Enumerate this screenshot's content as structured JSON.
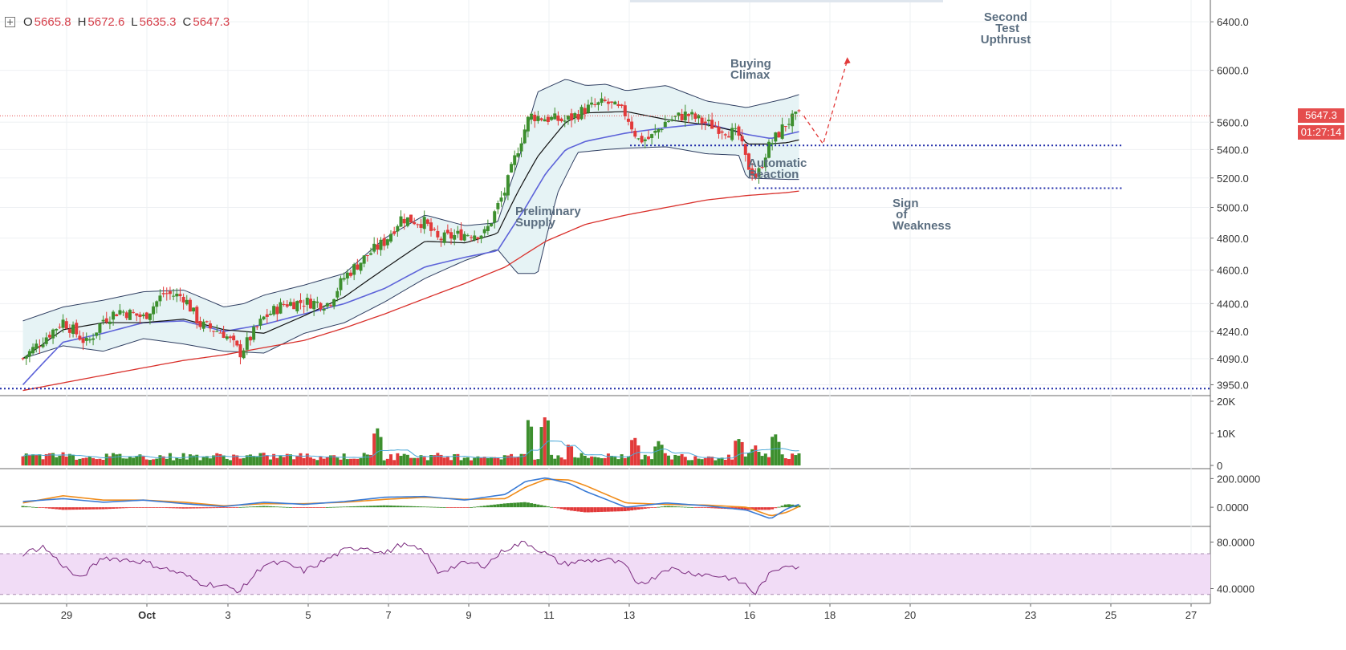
{
  "ohlc": {
    "o_label": "O",
    "o": "5665.8",
    "h_label": "H",
    "h": "5672.6",
    "l_label": "L",
    "l": "5635.3",
    "c_label": "C",
    "c": "5647.3"
  },
  "price_badge": {
    "value": "5647.3",
    "color": "#e54d4d"
  },
  "countdown_badge": {
    "value": "01:27:14",
    "color": "#e54d4d"
  },
  "annotations": [
    {
      "text": "Second\n   Test\nUpthrust"
    },
    {
      "text": "Buying\nClimax"
    },
    {
      "text": "Preliminary\nSupply"
    },
    {
      "text": "Automatic\nReaction"
    },
    {
      "text": "Sign\n  of\nWeakness"
    }
  ],
  "colors": {
    "up": "#3d8f2e",
    "down": "#e23a3a",
    "bb": "#2f3e61",
    "bb_fill": "#e6f3f5",
    "ma_black": "#111111",
    "ma_blue": "#5d63d9",
    "ma_red": "#d9302b",
    "support": "#1e2aa8",
    "macd_line": "#3a7bd5",
    "macd_signal": "#f08c1a",
    "rsi_line": "#7a2a7e",
    "rsi_band": "#f1dcf6",
    "vol_ma": "#4aa8d8",
    "annotation": "#5b6e80"
  },
  "chart_data": [
    {
      "type": "candlestick",
      "name": "price",
      "x_start": "2018-09-27",
      "x_end": "2018-10-19",
      "x_tick_labels": [
        "29",
        "Oct",
        "3",
        "5",
        "7",
        "9",
        "11",
        "13",
        "16",
        "18",
        "20",
        "23",
        "25",
        "27"
      ],
      "y_tick_labels": [
        "6400.0",
        "6000.0",
        "5600.0",
        "5400.0",
        "5200.0",
        "5000.0",
        "4800.0",
        "4600.0",
        "4400.0",
        "4240.0",
        "4090.0",
        "3950.0"
      ],
      "y_scale": "log",
      "ylim": [
        3910,
        6560
      ],
      "last_close": 5647.3,
      "close_path": [
        [
          0,
          4090
        ],
        [
          1,
          4300
        ],
        [
          1.6,
          4170
        ],
        [
          2,
          4310
        ],
        [
          2.4,
          4360
        ],
        [
          3,
          4320
        ],
        [
          3.5,
          4460
        ],
        [
          4,
          4440
        ],
        [
          4.4,
          4280
        ],
        [
          5,
          4230
        ],
        [
          5.4,
          4120
        ],
        [
          6,
          4320
        ],
        [
          6.5,
          4400
        ],
        [
          7,
          4410
        ],
        [
          7.6,
          4400
        ],
        [
          8,
          4560
        ],
        [
          8.6,
          4700
        ],
        [
          9,
          4780
        ],
        [
          9.4,
          4930
        ],
        [
          10,
          4900
        ],
        [
          10.3,
          4790
        ],
        [
          11,
          4830
        ],
        [
          11.5,
          4830
        ],
        [
          12,
          5120
        ],
        [
          12.3,
          5400
        ],
        [
          12.6,
          5650
        ],
        [
          13,
          5630
        ],
        [
          13.5,
          5610
        ],
        [
          14,
          5700
        ],
        [
          14.5,
          5750
        ],
        [
          15,
          5660
        ],
        [
          15.3,
          5470
        ],
        [
          15.6,
          5480
        ],
        [
          16,
          5610
        ],
        [
          16.5,
          5660
        ],
        [
          17,
          5590
        ],
        [
          17.5,
          5540
        ],
        [
          17.8,
          5500
        ],
        [
          18,
          5300
        ],
        [
          18.25,
          5200
        ],
        [
          18.5,
          5400
        ],
        [
          19,
          5600
        ],
        [
          19.3,
          5647
        ]
      ],
      "bollinger": {
        "upper": [
          [
            0,
            4300
          ],
          [
            1,
            4380
          ],
          [
            2,
            4420
          ],
          [
            3,
            4470
          ],
          [
            4,
            4480
          ],
          [
            5,
            4380
          ],
          [
            5.5,
            4400
          ],
          [
            6,
            4450
          ],
          [
            7,
            4510
          ],
          [
            8,
            4580
          ],
          [
            9,
            4800
          ],
          [
            10,
            4950
          ],
          [
            11,
            4880
          ],
          [
            11.8,
            4900
          ],
          [
            12.3,
            5300
          ],
          [
            12.8,
            5830
          ],
          [
            13.5,
            5930
          ],
          [
            14,
            5880
          ],
          [
            14.5,
            5890
          ],
          [
            15,
            5840
          ],
          [
            16,
            5880
          ],
          [
            17,
            5760
          ],
          [
            18,
            5710
          ],
          [
            19,
            5780
          ],
          [
            19.3,
            5810
          ]
        ],
        "lower": [
          [
            0,
            4090
          ],
          [
            1,
            4160
          ],
          [
            2,
            4130
          ],
          [
            3,
            4200
          ],
          [
            4,
            4170
          ],
          [
            5,
            4130
          ],
          [
            6,
            4120
          ],
          [
            7,
            4230
          ],
          [
            8,
            4290
          ],
          [
            9,
            4410
          ],
          [
            10,
            4550
          ],
          [
            11,
            4660
          ],
          [
            11.8,
            4730
          ],
          [
            12.3,
            4580
          ],
          [
            12.8,
            4580
          ],
          [
            13.3,
            5100
          ],
          [
            13.8,
            5380
          ],
          [
            14.5,
            5400
          ],
          [
            15,
            5410
          ],
          [
            16,
            5420
          ],
          [
            17,
            5370
          ],
          [
            17.8,
            5360
          ],
          [
            18,
            5200
          ],
          [
            19,
            5190
          ],
          [
            19.3,
            5190
          ]
        ]
      },
      "ma_short": [
        [
          0,
          4090
        ],
        [
          1,
          4250
        ],
        [
          2,
          4290
        ],
        [
          3,
          4290
        ],
        [
          4,
          4310
        ],
        [
          5,
          4250
        ],
        [
          6,
          4230
        ],
        [
          7,
          4330
        ],
        [
          8,
          4440
        ],
        [
          9,
          4610
        ],
        [
          10,
          4780
        ],
        [
          11,
          4770
        ],
        [
          11.8,
          4830
        ],
        [
          12.3,
          5100
        ],
        [
          12.8,
          5350
        ],
        [
          13.5,
          5600
        ],
        [
          14,
          5670
        ],
        [
          15,
          5680
        ],
        [
          16,
          5620
        ],
        [
          17,
          5580
        ],
        [
          17.8,
          5530
        ],
        [
          18,
          5440
        ],
        [
          18.5,
          5440
        ],
        [
          19,
          5450
        ],
        [
          19.3,
          5470
        ]
      ],
      "ma_long": [
        [
          0,
          3950
        ],
        [
          1,
          4180
        ],
        [
          2,
          4230
        ],
        [
          3,
          4290
        ],
        [
          4,
          4300
        ],
        [
          5,
          4240
        ],
        [
          6,
          4280
        ],
        [
          7,
          4340
        ],
        [
          8,
          4400
        ],
        [
          9,
          4490
        ],
        [
          10,
          4620
        ],
        [
          11,
          4680
        ],
        [
          11.8,
          4720
        ],
        [
          12.5,
          5000
        ],
        [
          13,
          5230
        ],
        [
          13.5,
          5400
        ],
        [
          14,
          5460
        ],
        [
          15,
          5520
        ],
        [
          16,
          5560
        ],
        [
          17,
          5590
        ],
        [
          18,
          5510
        ],
        [
          18.6,
          5480
        ],
        [
          19,
          5510
        ],
        [
          19.3,
          5530
        ]
      ],
      "ma_200": [
        [
          0,
          3920
        ],
        [
          2,
          4000
        ],
        [
          4,
          4080
        ],
        [
          5,
          4110
        ],
        [
          6,
          4150
        ],
        [
          7,
          4190
        ],
        [
          8,
          4260
        ],
        [
          9,
          4340
        ],
        [
          10,
          4430
        ],
        [
          11,
          4520
        ],
        [
          12,
          4620
        ],
        [
          13,
          4780
        ],
        [
          14,
          4890
        ],
        [
          15,
          4950
        ],
        [
          16,
          5000
        ],
        [
          17,
          5050
        ],
        [
          18,
          5080
        ],
        [
          19,
          5100
        ],
        [
          19.3,
          5110
        ]
      ],
      "support_levels": [
        3930,
        5430,
        5130
      ],
      "projection": [
        [
          19.3,
          5647
        ],
        [
          19.9,
          5440
        ],
        [
          20.5,
          6080
        ]
      ]
    },
    {
      "type": "bar",
      "name": "volume",
      "y_tick_labels": [
        "20K",
        "10K",
        "0"
      ],
      "ylim": [
        0,
        20000
      ],
      "peaks": [
        [
          1,
          4200
        ],
        [
          8.8,
          12800
        ],
        [
          9.5,
          4500
        ],
        [
          11.5,
          3200
        ],
        [
          12.6,
          16000
        ],
        [
          13,
          19400
        ],
        [
          13.6,
          8000
        ],
        [
          15.2,
          10600
        ],
        [
          15.8,
          9500
        ],
        [
          17.8,
          10200
        ],
        [
          18.2,
          7500
        ],
        [
          18.7,
          11300
        ],
        [
          19.3,
          4500
        ]
      ]
    },
    {
      "type": "line",
      "name": "macd",
      "y_tick_labels": [
        "200.0000",
        "0.0000"
      ],
      "ylim": [
        -100,
        230
      ],
      "macd": [
        [
          0,
          40
        ],
        [
          1,
          60
        ],
        [
          2,
          35
        ],
        [
          3,
          50
        ],
        [
          4,
          25
        ],
        [
          5,
          5
        ],
        [
          6,
          35
        ],
        [
          7,
          20
        ],
        [
          8,
          40
        ],
        [
          9,
          70
        ],
        [
          10,
          75
        ],
        [
          11,
          50
        ],
        [
          12,
          90
        ],
        [
          12.5,
          180
        ],
        [
          13,
          205
        ],
        [
          13.6,
          165
        ],
        [
          14,
          110
        ],
        [
          15,
          0
        ],
        [
          16,
          30
        ],
        [
          17,
          10
        ],
        [
          18,
          -20
        ],
        [
          18.6,
          -80
        ],
        [
          19,
          -10
        ],
        [
          19.3,
          20
        ]
      ],
      "signal": [
        [
          0,
          30
        ],
        [
          1,
          80
        ],
        [
          2,
          50
        ],
        [
          3,
          50
        ],
        [
          4,
          35
        ],
        [
          5,
          10
        ],
        [
          6,
          25
        ],
        [
          7,
          25
        ],
        [
          8,
          35
        ],
        [
          9,
          55
        ],
        [
          10,
          70
        ],
        [
          11,
          55
        ],
        [
          12,
          60
        ],
        [
          12.5,
          140
        ],
        [
          13,
          195
        ],
        [
          13.6,
          190
        ],
        [
          14,
          150
        ],
        [
          15,
          30
        ],
        [
          16,
          20
        ],
        [
          17,
          15
        ],
        [
          18,
          0
        ],
        [
          18.6,
          -60
        ],
        [
          19,
          -35
        ],
        [
          19.3,
          5
        ]
      ],
      "histogram_extremes": [
        [
          12.3,
          70
        ],
        [
          13.6,
          -25
        ],
        [
          15.1,
          -60
        ],
        [
          18.3,
          -50
        ],
        [
          19,
          40
        ]
      ]
    },
    {
      "type": "line",
      "name": "rsi",
      "y_tick_labels": [
        "80.0000",
        "40.0000"
      ],
      "ylim": [
        30,
        90
      ],
      "band": [
        35,
        70
      ],
      "values": [
        [
          0,
          70
        ],
        [
          0.5,
          76
        ],
        [
          1,
          60
        ],
        [
          1.4,
          48
        ],
        [
          2,
          67
        ],
        [
          3,
          63
        ],
        [
          4,
          52
        ],
        [
          4.4,
          45
        ],
        [
          5,
          42
        ],
        [
          5.4,
          38
        ],
        [
          6,
          61
        ],
        [
          6.5,
          62
        ],
        [
          7,
          55
        ],
        [
          7.5,
          64
        ],
        [
          8,
          73
        ],
        [
          8.5,
          76
        ],
        [
          9,
          70
        ],
        [
          9.4,
          78
        ],
        [
          10,
          72
        ],
        [
          10.3,
          54
        ],
        [
          11,
          62
        ],
        [
          11.5,
          60
        ],
        [
          12,
          74
        ],
        [
          12.5,
          80
        ],
        [
          13,
          70
        ],
        [
          13.4,
          61
        ],
        [
          14,
          64
        ],
        [
          14.5,
          65
        ],
        [
          15,
          60
        ],
        [
          15.2,
          45
        ],
        [
          15.6,
          47
        ],
        [
          16,
          58
        ],
        [
          16.5,
          54
        ],
        [
          17,
          52
        ],
        [
          17.5,
          50
        ],
        [
          18,
          43
        ],
        [
          18.2,
          35
        ],
        [
          18.5,
          50
        ],
        [
          19,
          62
        ],
        [
          19.3,
          57
        ]
      ]
    }
  ]
}
